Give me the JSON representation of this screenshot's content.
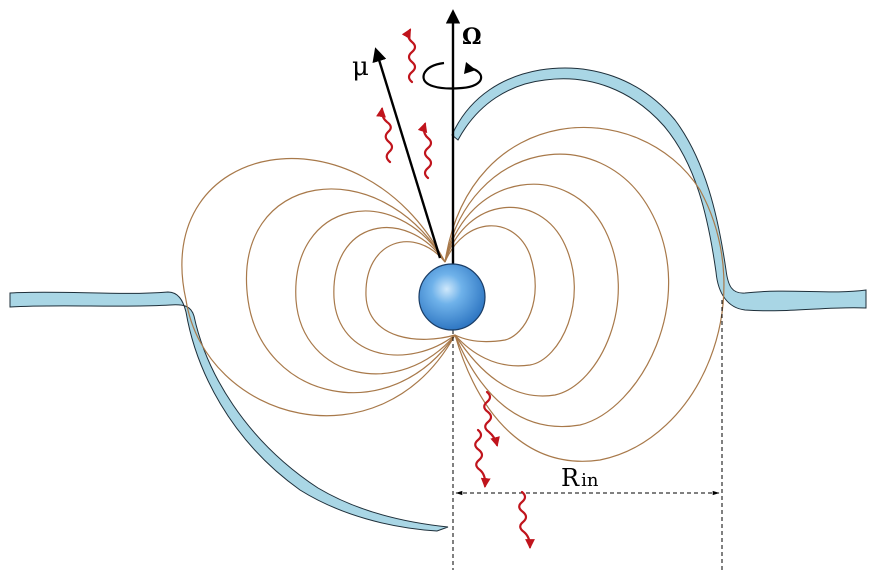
{
  "labels": {
    "magnetic_moment": "μ",
    "spin_axis": "Ω",
    "inner_radius": "R",
    "inner_radius_subscript": "in"
  },
  "colors": {
    "disk_fill": "#a9d6e5",
    "field_lines": "#a8794a",
    "star": "#3d8fd6",
    "emission": "#c0141c",
    "axes": "#000000"
  },
  "icons": {
    "rotation": "curved-rotation-arrow-icon",
    "emission": "wavy-photon-arrow-icon"
  }
}
